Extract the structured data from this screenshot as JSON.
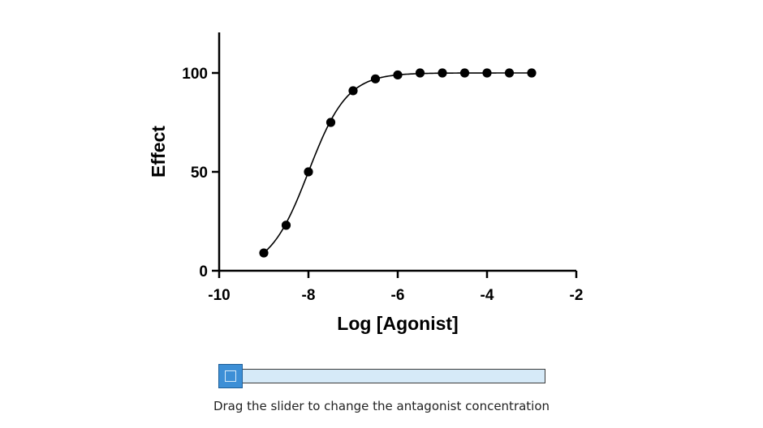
{
  "chart_data": {
    "type": "scatter",
    "xlabel": "Log [Agonist]",
    "ylabel": "Effect",
    "xlim": [
      -10,
      -2
    ],
    "ylim": [
      0,
      120
    ],
    "xticks": [
      -10,
      -8,
      -6,
      -4,
      -2
    ],
    "yticks": [
      0,
      50,
      100
    ],
    "x_tick_labels": [
      "-10",
      "-8",
      "-6",
      "-4",
      "-2"
    ],
    "y_tick_labels": [
      "0",
      "50",
      "100"
    ],
    "grid": false,
    "fit_curve": {
      "model": "sigmoid dose-response",
      "bottom": 0,
      "top": 100,
      "log_ec50": -8.0,
      "hill_slope": 1.0
    },
    "series": [
      {
        "x": [
          -9,
          -8.5,
          -8,
          -7.5,
          -7,
          -6.5,
          -6,
          -5.5,
          -5,
          -4.5,
          -4,
          -3.5,
          -3
        ],
        "y": [
          9,
          23,
          50,
          75,
          91,
          97,
          99,
          100,
          100,
          100,
          100,
          100,
          100
        ]
      }
    ]
  },
  "slider": {
    "value": 0,
    "caption": "Drag the slider to change the antagonist concentration"
  },
  "colors": {
    "slider_track": "#d6eaf8",
    "slider_thumb": "#3d8fd6"
  }
}
